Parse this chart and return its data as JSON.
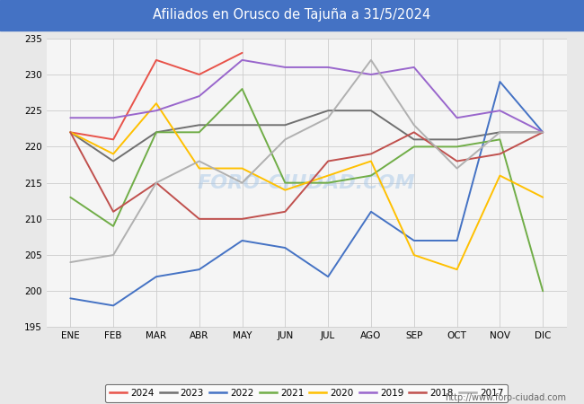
{
  "title": "Afiliados en Orusco de Tajuña a 31/5/2024",
  "title_color": "#ffffff",
  "title_bg_color": "#4472c4",
  "months": [
    "ENE",
    "FEB",
    "MAR",
    "ABR",
    "MAY",
    "JUN",
    "JUL",
    "AGO",
    "SEP",
    "OCT",
    "NOV",
    "DIC"
  ],
  "ylim": [
    195,
    235
  ],
  "yticks": [
    195,
    200,
    205,
    210,
    215,
    220,
    225,
    230,
    235
  ],
  "series": {
    "2024": {
      "color": "#e8534a",
      "data": [
        222,
        221,
        232,
        230,
        233,
        null,
        null,
        null,
        null,
        null,
        null,
        null
      ]
    },
    "2023": {
      "color": "#707070",
      "data": [
        222,
        218,
        222,
        223,
        223,
        223,
        225,
        225,
        221,
        221,
        222,
        222
      ]
    },
    "2022": {
      "color": "#4472c4",
      "data": [
        199,
        198,
        202,
        203,
        207,
        206,
        202,
        211,
        207,
        207,
        229,
        222
      ]
    },
    "2021": {
      "color": "#70ad47",
      "data": [
        213,
        209,
        222,
        222,
        228,
        215,
        215,
        216,
        220,
        220,
        221,
        200
      ]
    },
    "2020": {
      "color": "#ffc000",
      "data": [
        222,
        219,
        226,
        217,
        217,
        214,
        216,
        218,
        205,
        203,
        216,
        213
      ]
    },
    "2019": {
      "color": "#9966cc",
      "data": [
        224,
        224,
        225,
        227,
        232,
        231,
        231,
        230,
        231,
        224,
        225,
        222
      ]
    },
    "2018": {
      "color": "#c0504d",
      "data": [
        222,
        211,
        215,
        210,
        210,
        211,
        218,
        219,
        222,
        218,
        219,
        222
      ]
    },
    "2017": {
      "color": "#b0b0b0",
      "data": [
        204,
        205,
        215,
        218,
        215,
        221,
        224,
        232,
        223,
        217,
        222,
        222
      ]
    }
  },
  "legend_order": [
    "2024",
    "2023",
    "2022",
    "2021",
    "2020",
    "2019",
    "2018",
    "2017"
  ],
  "watermark": "FORO-CIUDAD.COM",
  "url": "http://www.foro-ciudad.com",
  "bg_color": "#e8e8e8",
  "plot_bg_color": "#f5f5f5",
  "grid_color": "#cccccc"
}
